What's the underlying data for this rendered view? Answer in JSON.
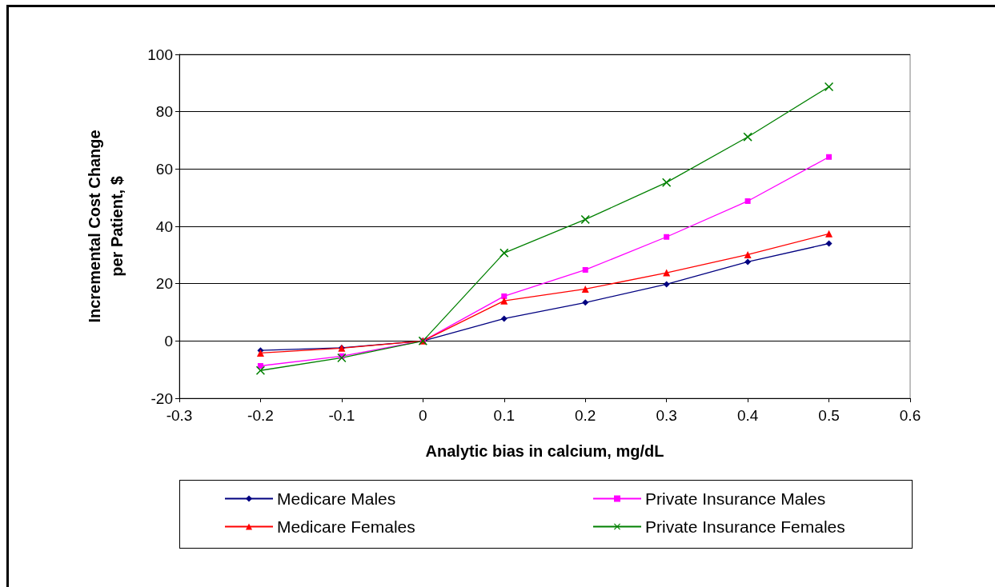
{
  "chart_data": {
    "type": "line",
    "xlabel": "Analytic bias in calcium, mg/dL",
    "ylabel": "Incremental Cost Change\nper Patient, $",
    "x": [
      -0.2,
      -0.1,
      0,
      0.1,
      0.2,
      0.3,
      0.4,
      0.5
    ],
    "series": [
      {
        "name": "Medicare Males",
        "color": "#000080",
        "marker": "diamond",
        "values": [
          -3.3,
          -2.4,
          0,
          7.8,
          13.4,
          19.8,
          27.6,
          34
        ]
      },
      {
        "name": "Private Insurance Males",
        "color": "#ff00ff",
        "marker": "square",
        "values": [
          -8.7,
          -5.3,
          0,
          15.6,
          24.8,
          36.3,
          48.8,
          64.2
        ]
      },
      {
        "name": "Medicare Females",
        "color": "#ff0000",
        "marker": "triangle",
        "values": [
          -4.2,
          -2.5,
          0,
          14,
          18.1,
          23.8,
          30.1,
          37.4
        ]
      },
      {
        "name": "Private Insurance Females",
        "color": "#008000",
        "marker": "cross",
        "values": [
          -10.3,
          -5.9,
          0,
          30.7,
          42.4,
          55.3,
          71.2,
          88.7
        ]
      }
    ],
    "xlim": [
      -0.3,
      0.6
    ],
    "xticks": [
      -0.3,
      -0.2,
      -0.1,
      0,
      0.1,
      0.2,
      0.3,
      0.4,
      0.5,
      0.6
    ],
    "ylim": [
      -20,
      100
    ],
    "yticks": [
      -20,
      0,
      20,
      40,
      60,
      80,
      100
    ],
    "grid": "y",
    "legend": "bottom",
    "line_style": "solid"
  }
}
